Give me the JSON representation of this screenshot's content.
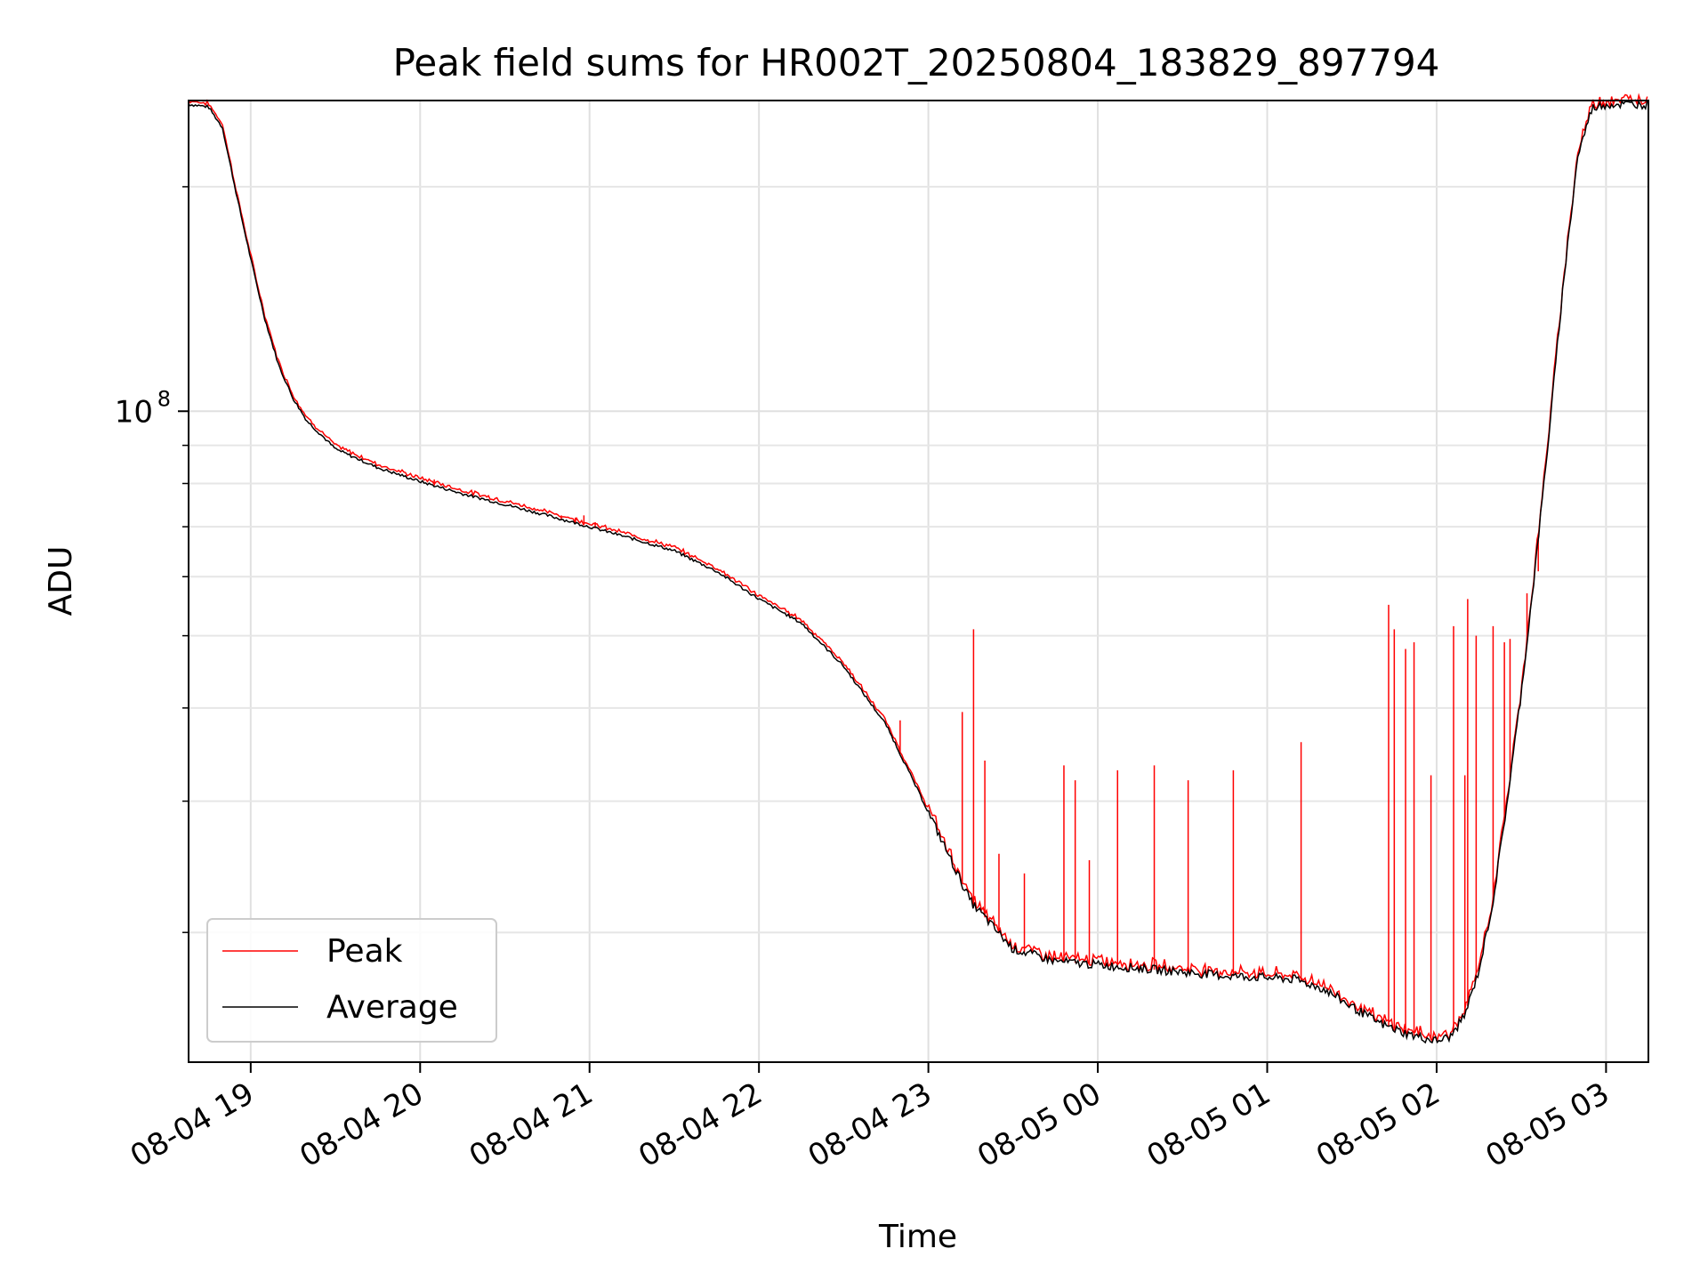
{
  "chart_data": {
    "type": "line",
    "title": "Peak field sums for HR002T_20250804_183829_897794",
    "xlabel": "Time",
    "ylabel": "ADU",
    "yscale": "log",
    "grid": true,
    "legend_position": "lower-left",
    "xlim": [
      "2025-08-04 18:38",
      "2025-08-05 03:15"
    ],
    "ylim": [
      13400000,
      261000000
    ],
    "x_ticks": [
      {
        "t": "2025-08-04 19:00",
        "label": "08-04 19"
      },
      {
        "t": "2025-08-04 20:00",
        "label": "08-04 20"
      },
      {
        "t": "2025-08-04 21:00",
        "label": "08-04 21"
      },
      {
        "t": "2025-08-04 22:00",
        "label": "08-04 22"
      },
      {
        "t": "2025-08-04 23:00",
        "label": "08-04 23"
      },
      {
        "t": "2025-08-05 00:00",
        "label": "08-05 00"
      },
      {
        "t": "2025-08-05 01:00",
        "label": "08-05 01"
      },
      {
        "t": "2025-08-05 02:00",
        "label": "08-05 02"
      },
      {
        "t": "2025-08-05 03:00",
        "label": "08-05 03"
      }
    ],
    "y_major_ticks": [
      {
        "value": 100000000,
        "label_base": "10",
        "label_exp": "8"
      }
    ],
    "y_minor_ticks": [
      20000000,
      30000000,
      40000000,
      50000000,
      60000000,
      70000000,
      80000000,
      90000000,
      200000000
    ],
    "series": [
      {
        "name": "Average",
        "color": "#000000",
        "points": [
          [
            "2025-08-04 18:38",
            258000000
          ],
          [
            "2025-08-04 18:45",
            256000000
          ],
          [
            "2025-08-04 18:50",
            240000000
          ],
          [
            "2025-08-04 18:55",
            195000000
          ],
          [
            "2025-08-04 19:00",
            160000000
          ],
          [
            "2025-08-04 19:05",
            133000000
          ],
          [
            "2025-08-04 19:10",
            115000000
          ],
          [
            "2025-08-04 19:15",
            104000000
          ],
          [
            "2025-08-04 19:20",
            97000000
          ],
          [
            "2025-08-04 19:30",
            89000000
          ],
          [
            "2025-08-04 19:45",
            84000000
          ],
          [
            "2025-08-04 20:00",
            80500000
          ],
          [
            "2025-08-04 20:15",
            77500000
          ],
          [
            "2025-08-04 20:30",
            75000000
          ],
          [
            "2025-08-04 20:45",
            72500000
          ],
          [
            "2025-08-04 21:00",
            70000000
          ],
          [
            "2025-08-04 21:15",
            67500000
          ],
          [
            "2025-08-04 21:30",
            65000000
          ],
          [
            "2025-08-04 21:45",
            61000000
          ],
          [
            "2025-08-04 22:00",
            56000000
          ],
          [
            "2025-08-04 22:15",
            52000000
          ],
          [
            "2025-08-04 22:30",
            45500000
          ],
          [
            "2025-08-04 22:45",
            38000000
          ],
          [
            "2025-08-04 23:00",
            29000000
          ],
          [
            "2025-08-04 23:15",
            22000000
          ],
          [
            "2025-08-04 23:30",
            19000000
          ],
          [
            "2025-08-04 23:45",
            18300000
          ],
          [
            "2025-08-05 00:00",
            18100000
          ],
          [
            "2025-08-05 00:15",
            17900000
          ],
          [
            "2025-08-05 00:30",
            17700000
          ],
          [
            "2025-08-05 00:45",
            17500000
          ],
          [
            "2025-08-05 01:00",
            17400000
          ],
          [
            "2025-08-05 01:10",
            17300000
          ],
          [
            "2025-08-05 01:20",
            16800000
          ],
          [
            "2025-08-05 01:30",
            15900000
          ],
          [
            "2025-08-05 01:40",
            15100000
          ],
          [
            "2025-08-05 01:50",
            14600000
          ],
          [
            "2025-08-05 02:00",
            14300000
          ],
          [
            "2025-08-05 02:05",
            14500000
          ],
          [
            "2025-08-05 02:10",
            15500000
          ],
          [
            "2025-08-05 02:15",
            17800000
          ],
          [
            "2025-08-05 02:20",
            22000000
          ],
          [
            "2025-08-05 02:25",
            30000000
          ],
          [
            "2025-08-05 02:30",
            42000000
          ],
          [
            "2025-08-05 02:35",
            62000000
          ],
          [
            "2025-08-05 02:40",
            95000000
          ],
          [
            "2025-08-05 02:45",
            150000000
          ],
          [
            "2025-08-05 02:50",
            220000000
          ],
          [
            "2025-08-05 02:55",
            255000000
          ],
          [
            "2025-08-05 03:00",
            258000000
          ],
          [
            "2025-08-05 03:15",
            258000000
          ]
        ]
      },
      {
        "name": "Peak",
        "color": "#ff0000",
        "spikes": [
          [
            "2025-08-04 20:05",
            81000000
          ],
          [
            "2025-08-04 20:50",
            72500000
          ],
          [
            "2025-08-04 20:55",
            72000000
          ],
          [
            "2025-08-04 20:58",
            72500000
          ],
          [
            "2025-08-04 21:02",
            71000000
          ],
          [
            "2025-08-04 21:27",
            65500000
          ],
          [
            "2025-08-04 22:50",
            38500000
          ],
          [
            "2025-08-04 23:12",
            39500000
          ],
          [
            "2025-08-04 23:16",
            51000000
          ],
          [
            "2025-08-04 23:20",
            34000000
          ],
          [
            "2025-08-04 23:25",
            25500000
          ],
          [
            "2025-08-04 23:34",
            24000000
          ],
          [
            "2025-08-04 23:48",
            33500000
          ],
          [
            "2025-08-04 23:52",
            32000000
          ],
          [
            "2025-08-04 23:57",
            25000000
          ],
          [
            "2025-08-05 00:07",
            33000000
          ],
          [
            "2025-08-05 00:20",
            33500000
          ],
          [
            "2025-08-05 00:32",
            32000000
          ],
          [
            "2025-08-05 00:48",
            33000000
          ],
          [
            "2025-08-05 01:12",
            36000000
          ],
          [
            "2025-08-05 01:43",
            55000000
          ],
          [
            "2025-08-05 01:45",
            51000000
          ],
          [
            "2025-08-05 01:49",
            48000000
          ],
          [
            "2025-08-05 01:52",
            49000000
          ],
          [
            "2025-08-05 01:58",
            32500000
          ],
          [
            "2025-08-05 02:06",
            51500000
          ],
          [
            "2025-08-05 02:10",
            32500000
          ],
          [
            "2025-08-05 02:11",
            56000000
          ],
          [
            "2025-08-05 02:14",
            50000000
          ],
          [
            "2025-08-05 02:20",
            51500000
          ],
          [
            "2025-08-05 02:24",
            49000000
          ],
          [
            "2025-08-05 02:26",
            49500000
          ],
          [
            "2025-08-05 02:32",
            57000000
          ],
          [
            "2025-08-05 02:36",
            61000000
          ]
        ]
      }
    ],
    "legend": [
      {
        "label": "Peak",
        "color": "#ff0000"
      },
      {
        "label": "Average",
        "color": "#000000"
      }
    ]
  }
}
